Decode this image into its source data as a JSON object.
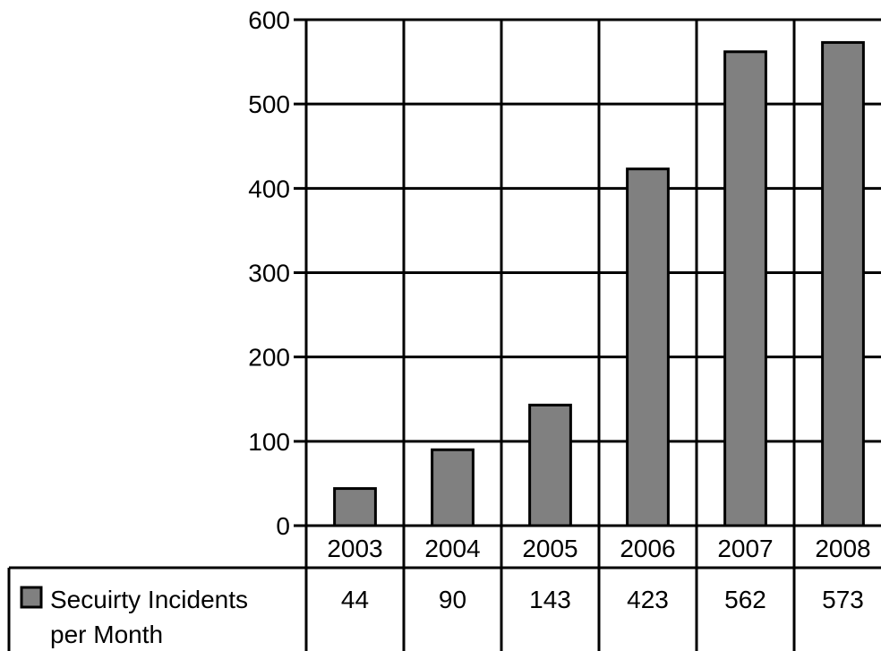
{
  "colors": {
    "bar_fill": "#808080",
    "bar_stroke": "#000000",
    "grid": "#000000",
    "background": "#ffffff"
  },
  "chart_data": {
    "type": "bar",
    "categories": [
      "2003",
      "2004",
      "2005",
      "2006",
      "2007",
      "2008"
    ],
    "series": [
      {
        "name": "Secuirty Incidents per Month",
        "name_lines": [
          "Secuirty Incidents",
          "per Month"
        ],
        "values": [
          44,
          90,
          143,
          423,
          562,
          573
        ]
      }
    ],
    "title": "",
    "xlabel": "",
    "ylabel": "",
    "ylim": [
      0,
      600
    ],
    "yticks": [
      "0",
      "100",
      "200",
      "300",
      "400",
      "500",
      "600"
    ],
    "grid": true,
    "data_table": true,
    "legend": "data-table-left"
  }
}
